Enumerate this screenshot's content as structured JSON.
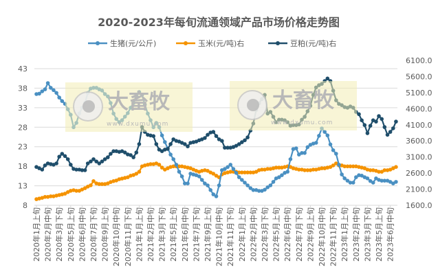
{
  "chart_data": {
    "type": "line",
    "title": "2020-2023年每旬流通领域产品市场价格走势图",
    "legend_position": "top",
    "grid": true,
    "x_tick_labels": [
      "2020年1月上旬",
      "2020年2月中旬",
      "2020年3月下旬",
      "2020年5月上旬",
      "2020年6月中旬",
      "2020年7月下旬",
      "2020年9月上旬",
      "2020年10月中旬",
      "2020年11月下旬",
      "2021年1月上旬",
      "2021年2月中旬",
      "2021年3月下旬",
      "2021年5月上旬",
      "2021年6月中旬",
      "2021年7月下旬",
      "2021年9月上旬",
      "2021年10月中旬",
      "2021年11月下旬",
      "2022年1月上旬",
      "2022年2月中旬",
      "2022年3月下旬",
      "2022年5月上旬",
      "2022年6月中旬",
      "2022年7月下旬",
      "2022年9月上旬",
      "2022年10月中旬",
      "2022年11月下旬",
      "2023年1月上旬",
      "2023年2月中旬",
      "2023年3月下旬",
      "2023年5月上旬",
      "2023年6月中旬"
    ],
    "x_tick_every": 4,
    "y_left": {
      "min": 8,
      "max": 43,
      "ticks": [
        "43",
        "38",
        "33",
        "28",
        "23",
        "18",
        "13",
        "8"
      ]
    },
    "y_right": {
      "min": 1600,
      "max": 6100,
      "ticks": [
        "6100.0",
        "5600.0",
        "5100.0",
        "4600.0",
        "4100.0",
        "3600.0",
        "3100.0",
        "2600.0",
        "2100.0",
        "1600.0"
      ]
    },
    "series": [
      {
        "name": "生猪(元/公斤)",
        "axis": "left",
        "color": "#4a90c2",
        "values": [
          36.5,
          36.6,
          37.2,
          37.7,
          39.3,
          38.1,
          37.5,
          36.8,
          35.6,
          34.7,
          34.0,
          32.6,
          31.2,
          28.0,
          29.1,
          31.5,
          33.0,
          34.2,
          36.8,
          37.9,
          38.1,
          38.1,
          37.7,
          37.4,
          36.5,
          35.9,
          34.2,
          31.5,
          30.1,
          29.3,
          29.8,
          30.7,
          31.6,
          33.0,
          34.2,
          35.9,
          37.0,
          36.3,
          33.8,
          31.5,
          29.8,
          28.0,
          29.1,
          28.0,
          25.9,
          24.2,
          22.6,
          21.0,
          19.8,
          18.4,
          16.6,
          15.4,
          13.6,
          13.6,
          16.1,
          15.9,
          15.7,
          15.4,
          14.5,
          13.6,
          13.1,
          11.9,
          10.8,
          10.3,
          13.1,
          17.0,
          17.3,
          17.8,
          18.4,
          17.3,
          16.3,
          15.2,
          14.5,
          13.8,
          13.1,
          12.4,
          11.9,
          11.9,
          11.7,
          11.7,
          12.0,
          12.6,
          13.1,
          14.0,
          14.9,
          15.2,
          15.7,
          16.3,
          16.6,
          19.8,
          22.4,
          22.6,
          21.0,
          21.4,
          21.4,
          22.9,
          23.5,
          23.8,
          24.0,
          25.8,
          27.7,
          26.8,
          25.9,
          23.6,
          22.1,
          21.2,
          18.4,
          15.9,
          14.9,
          14.3,
          13.8,
          13.8,
          15.2,
          15.7,
          15.6,
          15.2,
          14.9,
          14.2,
          13.8,
          14.9,
          14.5,
          14.3,
          14.3,
          14.3,
          14.0,
          13.6,
          14.0
        ]
      },
      {
        "name": "玉米(元/吨)右",
        "axis": "right",
        "color": "#f59300",
        "values": [
          1790,
          1810,
          1830,
          1860,
          1860,
          1880,
          1880,
          1900,
          1920,
          1940,
          1960,
          2010,
          2050,
          2070,
          2050,
          2050,
          2090,
          2130,
          2180,
          2220,
          2350,
          2280,
          2260,
          2260,
          2260,
          2280,
          2320,
          2350,
          2370,
          2410,
          2430,
          2450,
          2470,
          2520,
          2540,
          2580,
          2640,
          2810,
          2840,
          2860,
          2880,
          2880,
          2900,
          2860,
          2770,
          2710,
          2750,
          2790,
          2810,
          2810,
          2810,
          2810,
          2790,
          2770,
          2750,
          2710,
          2670,
          2640,
          2670,
          2690,
          2670,
          2620,
          2580,
          2520,
          2470,
          2560,
          2600,
          2620,
          2640,
          2640,
          2640,
          2620,
          2620,
          2620,
          2620,
          2620,
          2620,
          2640,
          2690,
          2710,
          2710,
          2730,
          2730,
          2750,
          2770,
          2770,
          2770,
          2790,
          2810,
          2790,
          2750,
          2730,
          2710,
          2710,
          2690,
          2690,
          2690,
          2710,
          2710,
          2730,
          2750,
          2750,
          2770,
          2790,
          2840,
          2900,
          2840,
          2840,
          2810,
          2810,
          2810,
          2810,
          2810,
          2790,
          2770,
          2750,
          2710,
          2690,
          2690,
          2670,
          2640,
          2640,
          2690,
          2690,
          2710,
          2750,
          2790
        ]
      },
      {
        "name": "豆粕(元/吨)右",
        "axis": "right",
        "color": "#1f4e6b",
        "values": [
          2790,
          2750,
          2710,
          2840,
          2900,
          2880,
          2860,
          2900,
          3110,
          3200,
          3130,
          3030,
          2860,
          2730,
          2710,
          2710,
          2690,
          2690,
          2900,
          2960,
          3030,
          2960,
          2900,
          2960,
          3030,
          3090,
          3200,
          3280,
          3280,
          3260,
          3280,
          3240,
          3180,
          3160,
          3090,
          3240,
          3500,
          4030,
          3880,
          3790,
          3770,
          3750,
          3500,
          3330,
          3280,
          3330,
          3350,
          3500,
          3650,
          3600,
          3580,
          3540,
          3500,
          3430,
          3540,
          3560,
          3580,
          3620,
          3650,
          3690,
          3790,
          3860,
          3880,
          3750,
          3650,
          3600,
          3390,
          3390,
          3390,
          3410,
          3450,
          3500,
          3560,
          3620,
          3710,
          3920,
          4140,
          4560,
          4770,
          4900,
          5030,
          4450,
          4500,
          4350,
          4180,
          4260,
          4260,
          4240,
          4180,
          4070,
          4090,
          4090,
          4110,
          4260,
          4350,
          4520,
          4690,
          5030,
          5260,
          5330,
          5370,
          5460,
          5540,
          5460,
          5160,
          4860,
          4750,
          4710,
          4650,
          4630,
          4670,
          4630,
          4500,
          4430,
          4240,
          4090,
          3840,
          4070,
          4240,
          4200,
          4370,
          4280,
          4030,
          3790,
          3880,
          3990,
          4200
        ]
      }
    ]
  },
  "watermark": {
    "brand": "大畜牧",
    "url": "www.dxumu.com",
    "color": "#f3ecb4"
  }
}
